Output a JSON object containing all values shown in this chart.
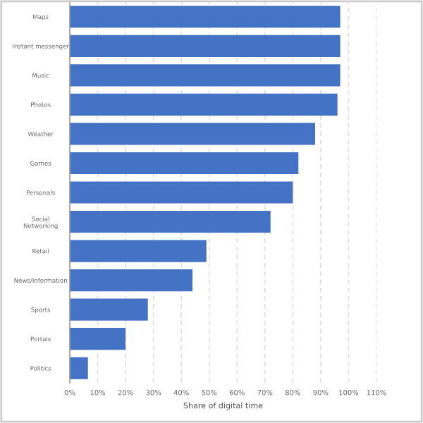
{
  "chart_data": {
    "type": "bar",
    "orientation": "horizontal",
    "xlabel": "Share of digital time",
    "categories": [
      "Maps",
      "Instant messenger",
      "Music",
      "Photos",
      "Weather",
      "Games",
      "Personals",
      "Social\nNetworking",
      "Retail",
      "News/Information",
      "Sports",
      "Portals",
      "Politics"
    ],
    "values": [
      97,
      97,
      97,
      96,
      88,
      82,
      80,
      72,
      49,
      44,
      28,
      20,
      6.5
    ],
    "color": "#4472c4",
    "xlim": [
      0,
      110
    ],
    "xticks": [
      {
        "value": 0,
        "label": "0%"
      },
      {
        "value": 10,
        "label": "10%"
      },
      {
        "value": 20,
        "label": "20%"
      },
      {
        "value": 30,
        "label": "30%"
      },
      {
        "value": 40,
        "label": "40%"
      },
      {
        "value": 50,
        "label": "50%"
      },
      {
        "value": 60,
        "label": "60%"
      },
      {
        "value": 70,
        "label": "70%"
      },
      {
        "value": 80,
        "label": "80%"
      },
      {
        "value": 90,
        "label": "90%"
      },
      {
        "value": 100,
        "label": "100%"
      },
      {
        "value": 110,
        "label": "110%"
      }
    ],
    "grid": "x"
  }
}
